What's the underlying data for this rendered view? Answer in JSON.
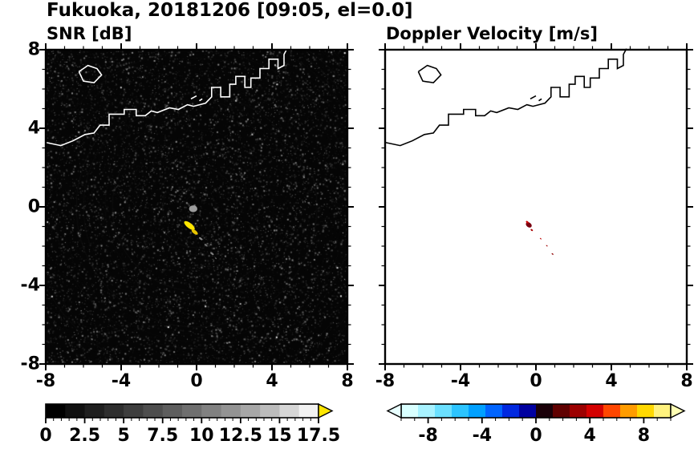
{
  "title": "Fukuoka, 20181206 [09:05, el=0.0]",
  "chart_data": [
    {
      "id": "snr",
      "type": "heatmap",
      "title": "SNR [dB]",
      "xlabel": "",
      "ylabel": "",
      "xlim": [
        -8,
        8
      ],
      "ylim": [
        -8,
        8
      ],
      "x_ticks": [
        "-8",
        "-4",
        "0",
        "4",
        "8"
      ],
      "y_ticks": [
        "8",
        "4",
        "0",
        "-4",
        "-8"
      ],
      "minor_tick_step": 1,
      "grid": false,
      "background_color": "#050505",
      "coast_color": "#ffffff",
      "noise": {
        "seed": 1337,
        "count": 14000,
        "bright_fraction": 0.004
      },
      "rings": {
        "spacing": 9,
        "alpha": 0.035
      },
      "echoes": [
        {
          "x": -0.18,
          "y": -0.1,
          "rx": 0.22,
          "ry": 0.17,
          "rot": 0,
          "color": "#9c9c9c"
        },
        {
          "x": -0.38,
          "y": -0.95,
          "rx": 0.34,
          "ry": 0.13,
          "rot": 38,
          "color": "#ffe600"
        },
        {
          "x": -0.1,
          "y": -1.28,
          "rx": 0.2,
          "ry": 0.09,
          "rot": 38,
          "color": "#e8c400"
        },
        {
          "x": 0.22,
          "y": -1.62,
          "rx": 0.11,
          "ry": 0.05,
          "rot": 38,
          "color": "#8a8a8a"
        },
        {
          "x": 0.5,
          "y": -1.95,
          "rx": 0.1,
          "ry": 0.04,
          "rot": 38,
          "color": "#6f6f6f"
        },
        {
          "x": 0.82,
          "y": -2.38,
          "rx": 0.11,
          "ry": 0.05,
          "rot": 38,
          "color": "#7d7d7d"
        },
        {
          "x": 1.02,
          "y": -2.62,
          "rx": 0.06,
          "ry": 0.03,
          "rot": 38,
          "color": "#606060"
        }
      ],
      "colorbar": {
        "range": [
          0,
          17.5
        ],
        "tick_values": [
          0,
          2.5,
          5,
          7.5,
          10,
          12.5,
          15,
          17.5
        ],
        "tick_labels": [
          "0",
          "2.5",
          "5",
          "7.5",
          "10",
          "12.5",
          "15",
          "17.5"
        ],
        "minor_step": 0.5,
        "segments": [
          "#000000",
          "#101010",
          "#1f1f1f",
          "#2e2e2e",
          "#3e3e3e",
          "#4e4e4e",
          "#5e5e5e",
          "#6f6f6f",
          "#818181",
          "#939393",
          "#a7a7a7",
          "#bcbcbc",
          "#d6d6d6",
          "#f2f2f2"
        ],
        "over_color": "#ffe600",
        "arrows": "right"
      }
    },
    {
      "id": "velocity",
      "type": "heatmap",
      "title": "Doppler Velocity [m/s]",
      "xlabel": "",
      "ylabel": "",
      "xlim": [
        -8,
        8
      ],
      "ylim": [
        -8,
        8
      ],
      "x_ticks": [
        "-8",
        "-4",
        "0",
        "4",
        "8"
      ],
      "y_ticks": [
        "8",
        "4",
        "0",
        "-4",
        "-8"
      ],
      "minor_tick_step": 1,
      "grid": false,
      "background_color": "#ffffff",
      "coast_color": "#000000",
      "echoes": [
        {
          "x": -0.38,
          "y": -0.92,
          "rx": 0.17,
          "ry": 0.12,
          "rot": 38,
          "color": "#7a0010"
        },
        {
          "x": -0.46,
          "y": -0.78,
          "rx": 0.08,
          "ry": 0.05,
          "rot": 38,
          "color": "#cc0000"
        },
        {
          "x": -0.22,
          "y": -1.18,
          "rx": 0.07,
          "ry": 0.04,
          "rot": 38,
          "color": "#aa0000"
        },
        {
          "x": 0.25,
          "y": -1.62,
          "rx": 0.05,
          "ry": 0.025,
          "rot": 38,
          "color": "#bb0000"
        },
        {
          "x": 0.58,
          "y": -1.98,
          "rx": 0.05,
          "ry": 0.025,
          "rot": 38,
          "color": "#a00000"
        },
        {
          "x": 0.88,
          "y": -2.4,
          "rx": 0.06,
          "ry": 0.03,
          "rot": 38,
          "color": "#8e0000"
        }
      ],
      "colorbar": {
        "range": [
          -10,
          10
        ],
        "tick_values": [
          -8,
          -4,
          0,
          4,
          8
        ],
        "tick_labels": [
          "-8",
          "-4",
          "0",
          "4",
          "8"
        ],
        "minor_step": 1,
        "segments": [
          "#d9ffff",
          "#a8f2ff",
          "#6be0ff",
          "#2cc4ff",
          "#00a0ff",
          "#0064ff",
          "#0028e0",
          "#0000a0",
          "#1a0008",
          "#600000",
          "#9c0000",
          "#d40000",
          "#ff4600",
          "#ff9c00",
          "#ffd800",
          "#fff27e"
        ],
        "under_color": "#e8ffff",
        "over_color": "#ffffb4",
        "arrows": "both"
      }
    }
  ],
  "coastline": {
    "main": [
      [
        -8,
        3.28
      ],
      [
        -7.2,
        3.12
      ],
      [
        -6.56,
        3.36
      ],
      [
        -5.92,
        3.68
      ],
      [
        -5.44,
        3.76
      ],
      [
        -5.12,
        4.16
      ],
      [
        -4.64,
        4.16
      ],
      [
        -4.64,
        4.72
      ],
      [
        -3.84,
        4.72
      ],
      [
        -3.84,
        4.96
      ],
      [
        -3.2,
        4.96
      ],
      [
        -3.2,
        4.64
      ],
      [
        -2.72,
        4.64
      ],
      [
        -2.4,
        4.88
      ],
      [
        -2.08,
        4.8
      ],
      [
        -1.44,
        5.04
      ],
      [
        -0.96,
        4.96
      ],
      [
        -0.48,
        5.2
      ],
      [
        -0.16,
        5.12
      ],
      [
        0.48,
        5.28
      ],
      [
        0.8,
        5.6
      ],
      [
        0.8,
        6.08
      ],
      [
        1.28,
        6.08
      ],
      [
        1.28,
        5.6
      ],
      [
        1.76,
        5.6
      ],
      [
        1.76,
        6.24
      ],
      [
        2.08,
        6.24
      ],
      [
        2.08,
        6.64
      ],
      [
        2.56,
        6.64
      ],
      [
        2.56,
        6.08
      ],
      [
        2.88,
        6.08
      ],
      [
        2.88,
        6.56
      ],
      [
        3.36,
        6.56
      ],
      [
        3.36,
        7.04
      ],
      [
        3.84,
        7.04
      ],
      [
        3.84,
        7.52
      ],
      [
        4.32,
        7.52
      ],
      [
        4.32,
        7.04
      ],
      [
        4.64,
        7.2
      ],
      [
        4.64,
        7.76
      ],
      [
        4.8,
        8.05
      ]
    ],
    "island": [
      [
        -6.24,
        6.88
      ],
      [
        -5.76,
        7.2
      ],
      [
        -5.28,
        7.04
      ],
      [
        -5.04,
        6.72
      ],
      [
        -5.44,
        6.32
      ],
      [
        -6.0,
        6.4
      ],
      [
        -6.24,
        6.88
      ]
    ],
    "marks": [
      [
        [
          -0.3,
          5.5
        ],
        [
          0.0,
          5.65
        ]
      ],
      [
        [
          0.15,
          5.4
        ],
        [
          0.3,
          5.5
        ]
      ]
    ]
  }
}
